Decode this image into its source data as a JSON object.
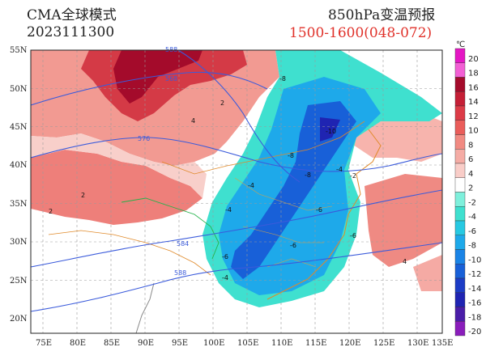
{
  "header": {
    "model": "CMA全球模式",
    "init_time": "2023111300",
    "product": "850hPa变温预报",
    "valid_range": "1500-1600(048-072)"
  },
  "map": {
    "lat_ticks": [
      "55N",
      "50N",
      "45N",
      "40N",
      "35N",
      "30N",
      "25N",
      "20N"
    ],
    "lon_ticks": [
      "75E",
      "80E",
      "85E",
      "90E",
      "95E",
      "100E",
      "105E",
      "110E",
      "115E",
      "120E",
      "125E",
      "130E",
      "135E"
    ],
    "height_contour_labels": [
      "568",
      "576",
      "584",
      "588",
      "588"
    ],
    "temp_change_labels": [
      "-8",
      "-10",
      "-8",
      "-4",
      "-8",
      "-6",
      "-4",
      "-6",
      "-4",
      "-6",
      "-4",
      "-2",
      "2",
      "2",
      "4",
      "2",
      "4",
      "-6"
    ]
  },
  "colorbar": {
    "unit_label": "℃",
    "labels": [
      "20",
      "18",
      "16",
      "14",
      "12",
      "10",
      "8",
      "6",
      "4",
      "2",
      "-2",
      "-4",
      "-6",
      "-8",
      "-10",
      "-12",
      "-14",
      "-16",
      "-18",
      "-20"
    ],
    "colors": [
      "#e417c4",
      "#f25fd4",
      "#a40b2b",
      "#c51f36",
      "#dc3b47",
      "#ea5d5a",
      "#f18a82",
      "#f5aca5",
      "#f9cdc8",
      "#ffffff",
      "#7ff0dc",
      "#3fe0cf",
      "#27c9e2",
      "#1ea9ea",
      "#1a84e6",
      "#1860d8",
      "#1c3cc6",
      "#1f24b2",
      "#4a1da8",
      "#8a1dbb"
    ]
  }
}
